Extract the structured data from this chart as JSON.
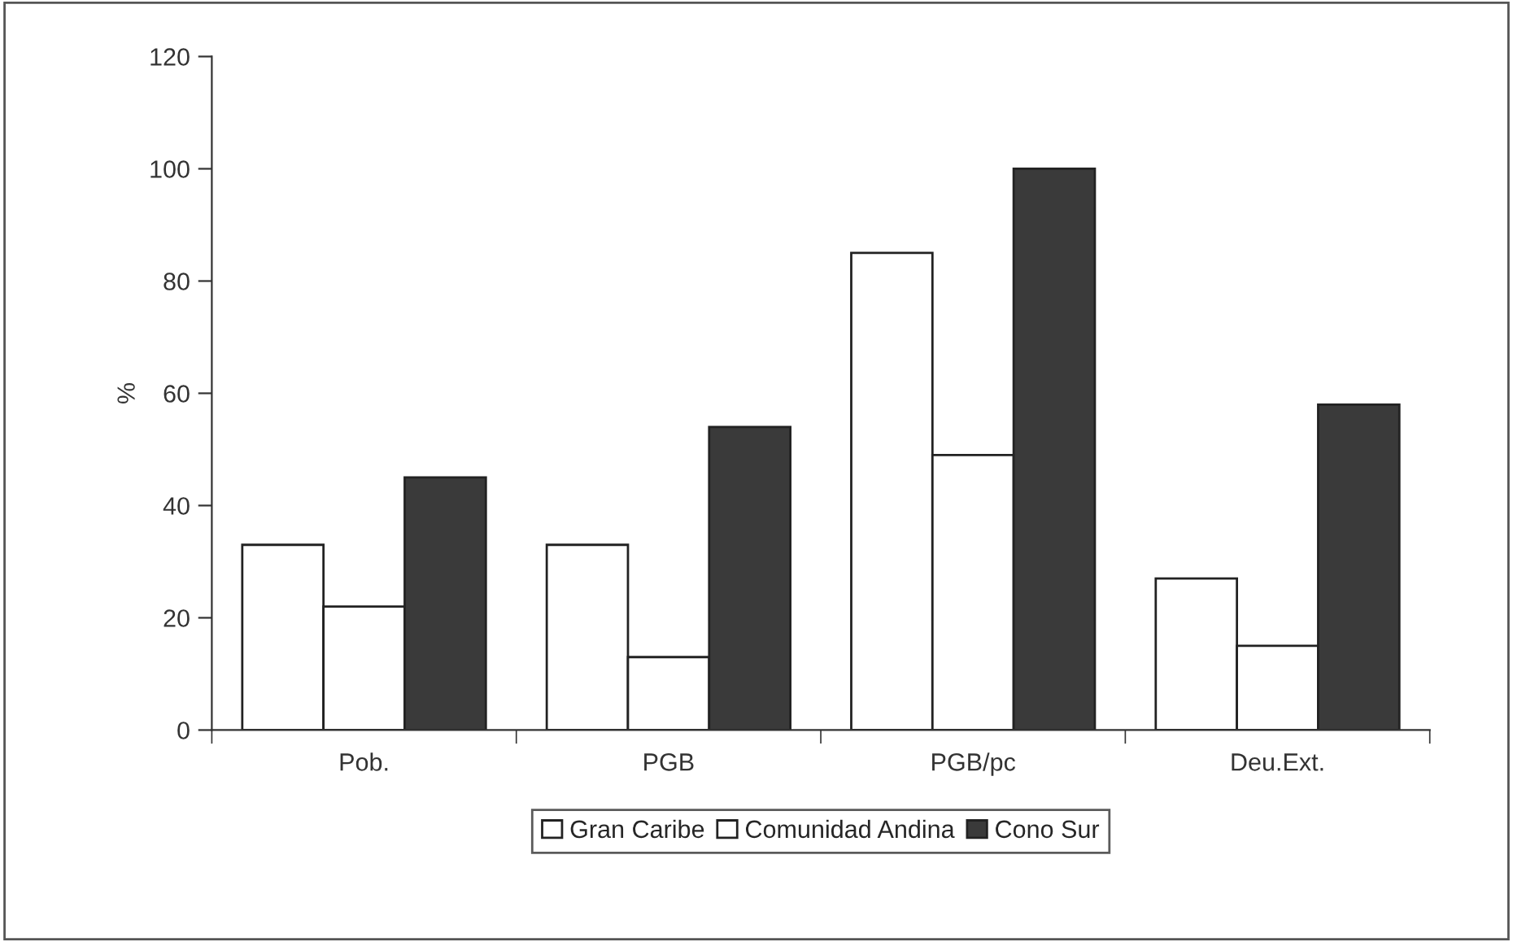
{
  "chart_data": {
    "type": "bar",
    "ylabel": "%",
    "categories": [
      "Pob.",
      "PGB",
      "PGB/pc",
      "Deu.Ext."
    ],
    "series": [
      {
        "name": "Gran Caribe",
        "color": "#ffffff",
        "values": [
          33,
          33,
          85,
          27
        ]
      },
      {
        "name": "Comunidad Andina",
        "color": "#ffffff",
        "values": [
          22,
          13,
          49,
          15
        ]
      },
      {
        "name": "Cono Sur",
        "color": "#3a3a3a",
        "values": [
          45,
          54,
          100,
          58
        ]
      }
    ],
    "ylim": [
      0,
      120
    ],
    "yticks": [
      0,
      20,
      40,
      60,
      80,
      100,
      120
    ],
    "grid": false,
    "legend": "bottom"
  }
}
